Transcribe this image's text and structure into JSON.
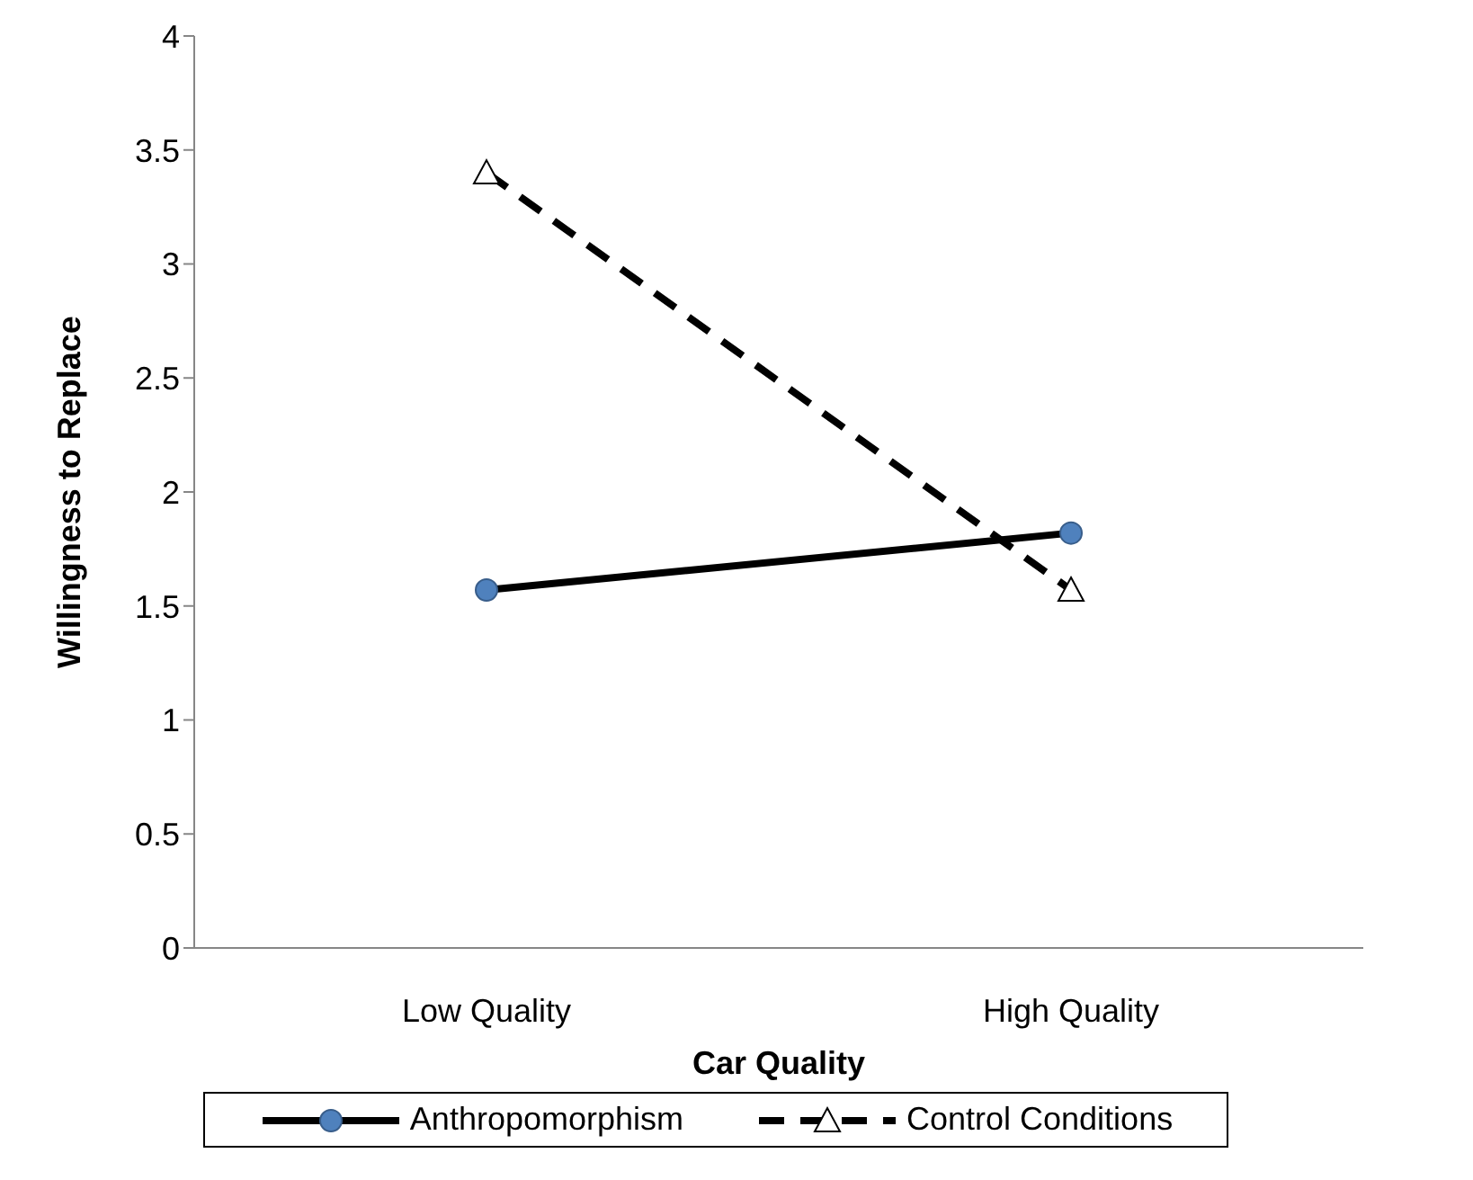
{
  "chart_data": {
    "type": "line",
    "xlabel": "Car Quality",
    "ylabel": "Willingness to Replace",
    "categories": [
      "Low Quality",
      "High Quality"
    ],
    "series": [
      {
        "name": "Anthropomorphism",
        "color": "#000000",
        "colors": [
          "#4f81bd",
          "#4f81bd"
        ],
        "values": [
          1.57,
          1.82
        ],
        "marker": "circle",
        "line_style": "solid"
      },
      {
        "name": "Control Conditions",
        "color": "#000000",
        "colors": [
          "#ffffff",
          "#ffffff"
        ],
        "values": [
          3.4,
          1.57
        ],
        "marker": "triangle",
        "line_style": "dashed"
      }
    ],
    "ylim": [
      0,
      4
    ],
    "yticks": [
      0,
      0.5,
      1,
      1.5,
      2,
      2.5,
      3,
      3.5,
      4
    ],
    "grid": false,
    "legend": "bottom"
  }
}
